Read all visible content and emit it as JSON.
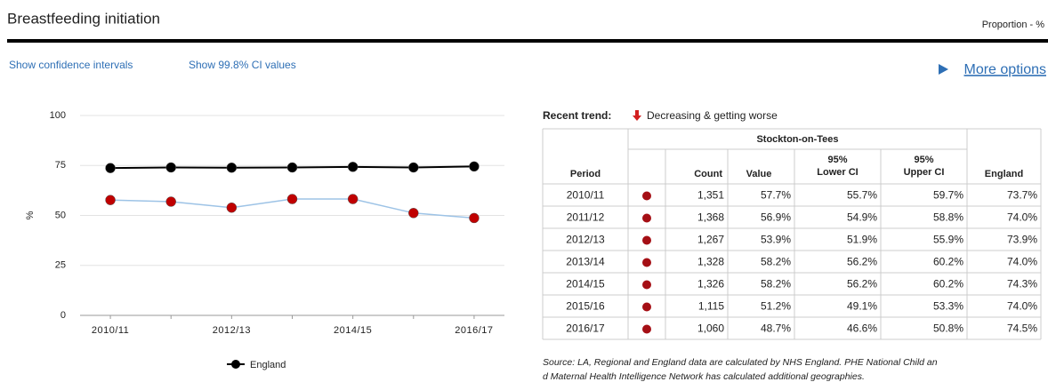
{
  "header": {
    "title": "Breastfeeding initiation",
    "unit": "Proportion - %"
  },
  "links": [
    "Show confidence intervals",
    "Show 99.8% CI values",
    "More options"
  ],
  "chart_data": {
    "type": "line",
    "ylabel": "%",
    "categories": [
      "2010/11",
      null,
      "2012/13",
      null,
      "2014/15",
      null,
      "2016/17"
    ],
    "ylim": [
      0,
      100
    ],
    "yticks": [
      0,
      25,
      50,
      75,
      100
    ],
    "grid": true,
    "legend": "bottom",
    "series": [
      {
        "name": "England",
        "color": "#000000",
        "values": [
          73.7,
          74.0,
          73.9,
          74.0,
          74.3,
          74.0,
          74.5
        ]
      },
      {
        "color": "#9dc3e6",
        "marker_color": "#c00000",
        "values": [
          57.7,
          56.9,
          53.9,
          58.2,
          58.2,
          51.2,
          48.7
        ]
      }
    ]
  },
  "trend": {
    "label": "Recent trend:",
    "text": "Decreasing & getting worse"
  },
  "table": {
    "group": "Stockton-on-Tees",
    "columns": [
      "Period",
      "Count",
      "Value",
      "95%",
      "Lower CI",
      "95%",
      "Upper CI",
      "England"
    ],
    "rows": [
      [
        "2010/11",
        "1,351",
        "57.7%",
        "55.7%",
        "59.7%",
        "73.7%"
      ],
      [
        "2011/12",
        "1,368",
        "56.9%",
        "54.9%",
        "58.8%",
        "74.0%"
      ],
      [
        "2012/13",
        "1,267",
        "53.9%",
        "51.9%",
        "55.9%",
        "73.9%"
      ],
      [
        "2013/14",
        "1,328",
        "58.2%",
        "56.2%",
        "60.2%",
        "74.0%"
      ],
      [
        "2014/15",
        "1,326",
        "58.2%",
        "56.2%",
        "60.2%",
        "74.3%"
      ],
      [
        "2015/16",
        "1,115",
        "51.2%",
        "49.1%",
        "53.3%",
        "74.0%"
      ],
      [
        "2016/17",
        "1,060",
        "48.7%",
        "46.6%",
        "50.8%",
        "74.5%"
      ]
    ]
  },
  "source": [
    "Source: LA, Regional and England data are calculated by NHS England. PHE National Child an",
    "d Maternal Health Intelligence Network has calculated additional geographies."
  ]
}
